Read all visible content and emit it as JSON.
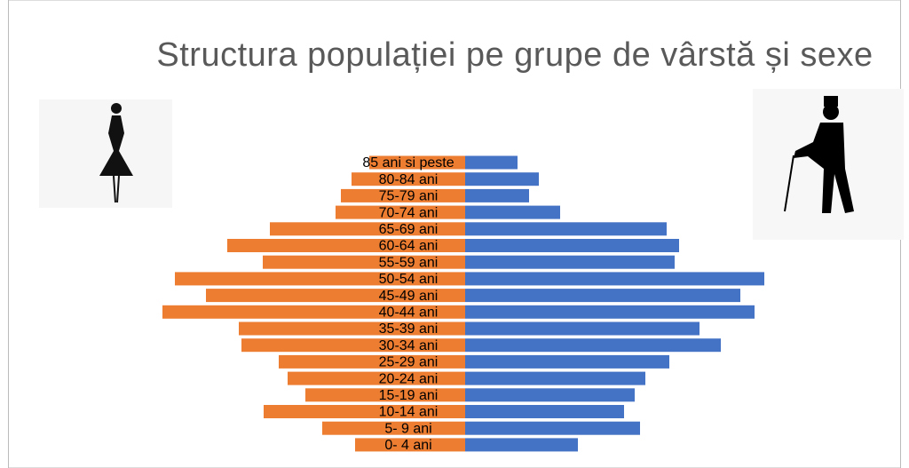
{
  "chart_data": {
    "type": "pyramid",
    "title": "Structura populației pe grupe de vârstă și sexe",
    "categories": [
      "85 ani si peste",
      "80-84 ani",
      "75-79 ani",
      "70-74 ani",
      "65-69 ani",
      "60-64 ani",
      "55-59 ani",
      "50-54 ani",
      "45-49 ani",
      "40-44 ani",
      "35-39 ani",
      "30-34 ani",
      "25-29 ani",
      "20-24 ani",
      "15-19 ani",
      "10-14 ani",
      "5- 9 ani",
      "0- 4 ani"
    ],
    "series": [
      {
        "color": "#ed7d31",
        "values": [
          108,
          128,
          140,
          146,
          220,
          268,
          228,
          327,
          292,
          341,
          255,
          252,
          210,
          200,
          180,
          227,
          161,
          124
        ]
      },
      {
        "color": "#4472c4",
        "values": [
          59,
          83,
          72,
          107,
          227,
          241,
          236,
          337,
          310,
          326,
          264,
          288,
          230,
          203,
          191,
          179,
          197,
          127
        ]
      }
    ]
  }
}
